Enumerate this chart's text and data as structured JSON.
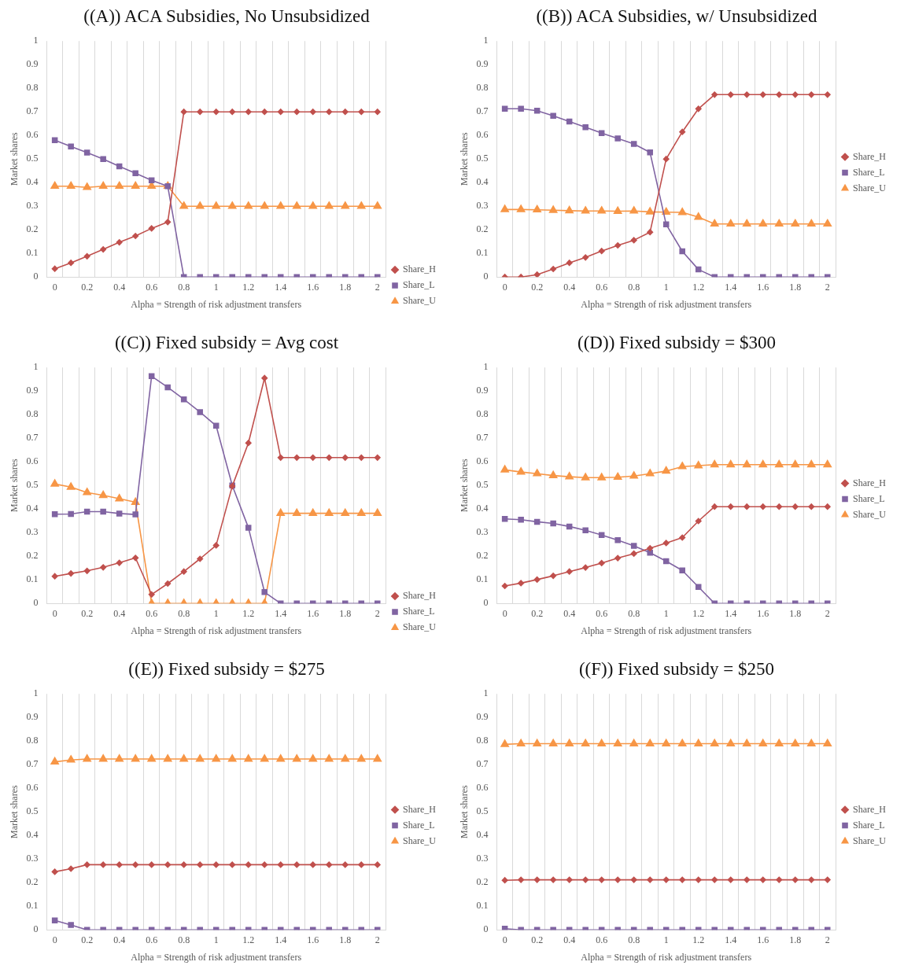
{
  "chart_data": [
    {
      "type": "line",
      "title": "((A)) ACA Subsidies, No Unsubsidized",
      "xlabel": "Alpha = Strength of risk adjustment transfers",
      "ylabel": "Market shares",
      "categories": [
        "0",
        null,
        "0.2",
        null,
        "0.4",
        null,
        "0.6",
        null,
        "0.8",
        null,
        "1",
        null,
        "1.2",
        null,
        "1.4",
        null,
        "1.6",
        null,
        "1.8",
        null,
        "2"
      ],
      "ylim": [
        0,
        1
      ],
      "yticks": [
        0,
        0.1,
        0.2,
        0.3,
        0.4,
        0.5,
        0.6,
        0.7,
        0.8,
        0.9,
        1
      ],
      "grid": "x",
      "legend": "bottom right",
      "series": [
        {
          "name": "Share_H",
          "color": "#c0504d",
          "marker": "diamond",
          "values": [
            0.035,
            0.06,
            0.088,
            0.117,
            0.147,
            0.174,
            0.206,
            0.233,
            0.7,
            0.7,
            0.7,
            0.7,
            0.7,
            0.7,
            0.7,
            0.7,
            0.7,
            0.7,
            0.7,
            0.7,
            0.7
          ]
        },
        {
          "name": "Share_L",
          "color": "#8064a2",
          "marker": "square",
          "values": [
            0.58,
            0.553,
            0.527,
            0.5,
            0.469,
            0.44,
            0.41,
            0.385,
            0,
            0,
            0,
            0,
            0,
            0,
            0,
            0,
            0,
            0,
            0,
            0,
            0
          ]
        },
        {
          "name": "Share_U",
          "color": "#f79646",
          "marker": "triangle",
          "values": [
            0.385,
            0.385,
            0.38,
            0.385,
            0.385,
            0.385,
            0.385,
            0.385,
            0.3,
            0.3,
            0.3,
            0.3,
            0.3,
            0.3,
            0.3,
            0.3,
            0.3,
            0.3,
            0.3,
            0.3,
            0.3
          ]
        }
      ]
    },
    {
      "type": "line",
      "title": "((B)) ACA Subsidies, w/ Unsubsidized",
      "xlabel": "Alpha = Strength of risk adjustment transfers",
      "ylabel": "Market shares",
      "categories": [
        "0",
        null,
        "0.2",
        null,
        "0.4",
        null,
        "0.6",
        null,
        "0.8",
        null,
        "1",
        null,
        "1.2",
        null,
        "1.4",
        null,
        "1.6",
        null,
        "1.8",
        null,
        "2"
      ],
      "ylim": [
        0,
        1
      ],
      "yticks": [
        0,
        0.1,
        0.2,
        0.3,
        0.4,
        0.5,
        0.6,
        0.7,
        0.8,
        0.9,
        1
      ],
      "grid": "x",
      "legend": "right",
      "series": [
        {
          "name": "Share_H",
          "color": "#c0504d",
          "marker": "diamond",
          "values": [
            0,
            0,
            0.01,
            0.034,
            0.06,
            0.083,
            0.11,
            0.134,
            0.156,
            0.19,
            0.5,
            0.615,
            0.713,
            0.773,
            0.773,
            0.773,
            0.773,
            0.773,
            0.773,
            0.773,
            0.773
          ]
        },
        {
          "name": "Share_L",
          "color": "#8064a2",
          "marker": "square",
          "values": [
            0.713,
            0.713,
            0.705,
            0.683,
            0.659,
            0.635,
            0.61,
            0.587,
            0.564,
            0.528,
            0.223,
            0.109,
            0.032,
            0,
            0,
            0,
            0,
            0,
            0,
            0,
            0
          ]
        },
        {
          "name": "Share_U",
          "color": "#f79646",
          "marker": "triangle",
          "values": [
            0.286,
            0.286,
            0.285,
            0.283,
            0.281,
            0.28,
            0.28,
            0.279,
            0.28,
            0.276,
            0.275,
            0.274,
            0.254,
            0.225,
            0.225,
            0.225,
            0.225,
            0.225,
            0.225,
            0.225,
            0.225
          ]
        }
      ]
    },
    {
      "type": "line",
      "title": "((C)) Fixed subsidy = Avg cost",
      "xlabel": "Alpha = Strength of risk adjustment transfers",
      "ylabel": "Market shares",
      "categories": [
        "0",
        null,
        "0.2",
        null,
        "0.4",
        null,
        "0.6",
        null,
        "0.8",
        null,
        "1",
        null,
        "1.2",
        null,
        "1.4",
        null,
        "1.6",
        null,
        "1.8",
        null,
        "2"
      ],
      "ylim": [
        0,
        1
      ],
      "yticks": [
        0,
        0.1,
        0.2,
        0.3,
        0.4,
        0.5,
        0.6,
        0.7,
        0.8,
        0.9,
        1
      ],
      "grid": "x",
      "legend": "bottom right",
      "series": [
        {
          "name": "Share_H",
          "color": "#c0504d",
          "marker": "diamond",
          "values": [
            0.115,
            0.127,
            0.138,
            0.153,
            0.172,
            0.193,
            0.038,
            0.084,
            0.135,
            0.189,
            0.246,
            0.497,
            0.68,
            0.955,
            0.618,
            0.618,
            0.618,
            0.618,
            0.618,
            0.618,
            0.618
          ]
        },
        {
          "name": "Share_L",
          "color": "#8064a2",
          "marker": "square",
          "values": [
            0.378,
            0.379,
            0.389,
            0.389,
            0.381,
            0.377,
            0.963,
            0.916,
            0.865,
            0.811,
            0.753,
            0.5,
            0.321,
            0.048,
            0,
            0,
            0,
            0,
            0,
            0,
            0
          ]
        },
        {
          "name": "Share_U",
          "color": "#f79646",
          "marker": "triangle",
          "values": [
            0.506,
            0.493,
            0.47,
            0.458,
            0.444,
            0.429,
            0,
            0,
            0,
            0,
            0,
            0,
            0,
            0,
            0.382,
            0.382,
            0.382,
            0.382,
            0.382,
            0.382,
            0.382
          ]
        }
      ]
    },
    {
      "type": "line",
      "title": "((D)) Fixed subsidy = $300",
      "xlabel": "Alpha = Strength of risk adjustment transfers",
      "ylabel": "Market shares",
      "categories": [
        "0",
        null,
        "0.2",
        null,
        "0.4",
        null,
        "0.6",
        null,
        "0.8",
        null,
        "1",
        null,
        "1.2",
        null,
        "1.4",
        null,
        "1.6",
        null,
        "1.8",
        null,
        "2"
      ],
      "ylim": [
        0,
        1
      ],
      "yticks": [
        0,
        0.1,
        0.2,
        0.3,
        0.4,
        0.5,
        0.6,
        0.7,
        0.8,
        0.9,
        1
      ],
      "grid": "x",
      "legend": "right",
      "series": [
        {
          "name": "Share_H",
          "color": "#c0504d",
          "marker": "diamond",
          "values": [
            0.074,
            0.086,
            0.101,
            0.117,
            0.135,
            0.152,
            0.171,
            0.192,
            0.211,
            0.234,
            0.256,
            0.279,
            0.349,
            0.41,
            0.41,
            0.41,
            0.41,
            0.41,
            0.41,
            0.41,
            0.41
          ]
        },
        {
          "name": "Share_L",
          "color": "#8064a2",
          "marker": "square",
          "values": [
            0.358,
            0.355,
            0.346,
            0.339,
            0.326,
            0.31,
            0.29,
            0.268,
            0.244,
            0.215,
            0.179,
            0.14,
            0.07,
            0,
            0,
            0,
            0,
            0,
            0,
            0,
            0
          ]
        },
        {
          "name": "Share_U",
          "color": "#f79646",
          "marker": "triangle",
          "values": [
            0.566,
            0.557,
            0.55,
            0.542,
            0.537,
            0.533,
            0.533,
            0.535,
            0.54,
            0.55,
            0.561,
            0.58,
            0.584,
            0.588,
            0.588,
            0.588,
            0.588,
            0.588,
            0.588,
            0.588,
            0.588
          ]
        }
      ]
    },
    {
      "type": "line",
      "title": "((E)) Fixed subsidy = $275",
      "xlabel": "Alpha = Strength of risk adjustment transfers",
      "ylabel": "Market shares",
      "categories": [
        "0",
        null,
        "0.2",
        null,
        "0.4",
        null,
        "0.6",
        null,
        "0.8",
        null,
        "1",
        null,
        "1.2",
        null,
        "1.4",
        null,
        "1.6",
        null,
        "1.8",
        null,
        "2"
      ],
      "ylim": [
        0,
        1
      ],
      "yticks": [
        0,
        0.1,
        0.2,
        0.3,
        0.4,
        0.5,
        0.6,
        0.7,
        0.8,
        0.9,
        1
      ],
      "grid": "x",
      "legend": "right",
      "series": [
        {
          "name": "Share_H",
          "color": "#c0504d",
          "marker": "diamond",
          "values": [
            0.246,
            0.259,
            0.276,
            0.276,
            0.276,
            0.276,
            0.276,
            0.276,
            0.276,
            0.276,
            0.276,
            0.276,
            0.276,
            0.276,
            0.276,
            0.276,
            0.276,
            0.276,
            0.276,
            0.276,
            0.276
          ]
        },
        {
          "name": "Share_L",
          "color": "#8064a2",
          "marker": "square",
          "values": [
            0.04,
            0.021,
            0,
            0,
            0,
            0,
            0,
            0,
            0,
            0,
            0,
            0,
            0,
            0,
            0,
            0,
            0,
            0,
            0,
            0,
            0
          ]
        },
        {
          "name": "Share_U",
          "color": "#f79646",
          "marker": "triangle",
          "values": [
            0.712,
            0.72,
            0.724,
            0.724,
            0.724,
            0.724,
            0.724,
            0.724,
            0.724,
            0.724,
            0.724,
            0.724,
            0.724,
            0.724,
            0.724,
            0.724,
            0.724,
            0.724,
            0.724,
            0.724,
            0.724
          ]
        }
      ]
    },
    {
      "type": "line",
      "title": "((F)) Fixed subsidy = $250",
      "xlabel": "Alpha = Strength of risk adjustment transfers",
      "ylabel": "Market shares",
      "categories": [
        "0",
        null,
        "0.2",
        null,
        "0.4",
        null,
        "0.6",
        null,
        "0.8",
        null,
        "1",
        null,
        "1.2",
        null,
        "1.4",
        null,
        "1.6",
        null,
        "1.8",
        null,
        "2"
      ],
      "ylim": [
        0,
        1
      ],
      "yticks": [
        0,
        0.1,
        0.2,
        0.3,
        0.4,
        0.5,
        0.6,
        0.7,
        0.8,
        0.9,
        1
      ],
      "grid": "x",
      "legend": "right",
      "series": [
        {
          "name": "Share_H",
          "color": "#c0504d",
          "marker": "diamond",
          "values": [
            0.21,
            0.212,
            0.212,
            0.212,
            0.212,
            0.212,
            0.212,
            0.212,
            0.212,
            0.212,
            0.212,
            0.212,
            0.212,
            0.212,
            0.212,
            0.212,
            0.212,
            0.212,
            0.212,
            0.212,
            0.212
          ]
        },
        {
          "name": "Share_L",
          "color": "#8064a2",
          "marker": "square",
          "values": [
            0.005,
            0,
            0,
            0,
            0,
            0,
            0,
            0,
            0,
            0,
            0,
            0,
            0,
            0,
            0,
            0,
            0,
            0,
            0,
            0,
            0
          ]
        },
        {
          "name": "Share_U",
          "color": "#f79646",
          "marker": "triangle",
          "values": [
            0.786,
            0.789,
            0.789,
            0.789,
            0.789,
            0.789,
            0.789,
            0.789,
            0.789,
            0.789,
            0.789,
            0.789,
            0.789,
            0.789,
            0.789,
            0.789,
            0.789,
            0.789,
            0.789,
            0.789,
            0.789
          ]
        }
      ]
    }
  ]
}
